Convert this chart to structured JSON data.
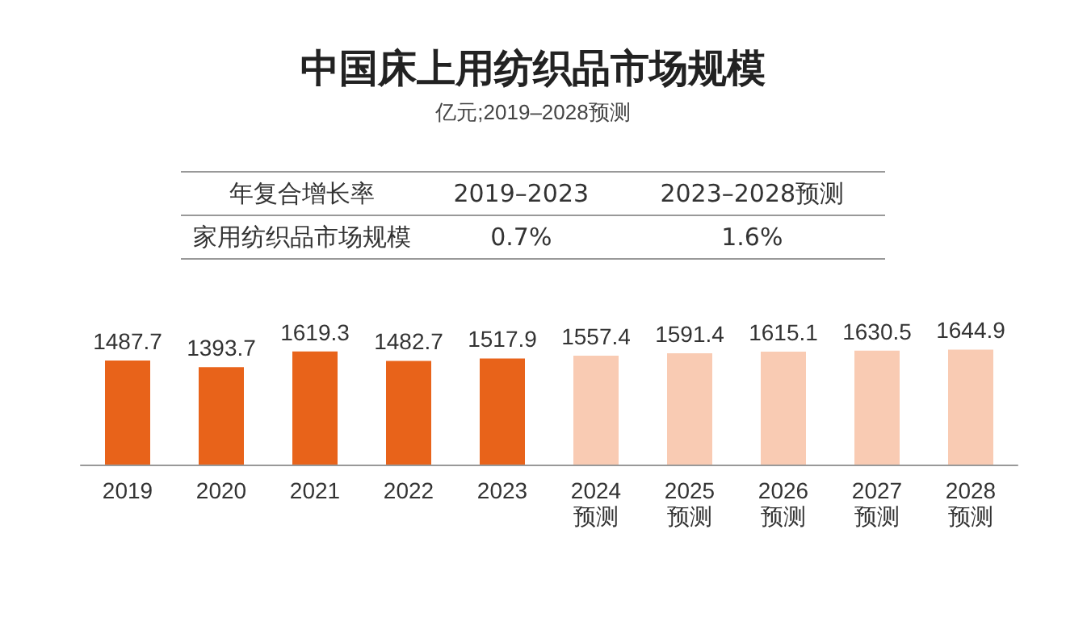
{
  "chart_data": {
    "type": "bar",
    "title": "中国床上用纺织品市场规模",
    "subtitle": "亿元;2019–2028预测",
    "categories": [
      "2019",
      "2020",
      "2021",
      "2022",
      "2023",
      "2024\n预测",
      "2025\n预测",
      "2026\n预测",
      "2027\n预测",
      "2028\n预测"
    ],
    "values": [
      1487.7,
      1393.7,
      1619.3,
      1482.7,
      1517.9,
      1557.4,
      1591.4,
      1615.1,
      1630.5,
      1644.9
    ],
    "colors": [
      "#e8631a",
      "#e8631a",
      "#e8631a",
      "#e8631a",
      "#e8631a",
      "#f9cbb3",
      "#f9cbb3",
      "#f9cbb3",
      "#f9cbb3",
      "#f9cbb3"
    ],
    "data_labels": true,
    "annotations": [
      "年复合增长率",
      "2019–2023",
      "2023–2028预测",
      "家用纺织品市场规模",
      "0.7%",
      "1.6%"
    ]
  }
}
